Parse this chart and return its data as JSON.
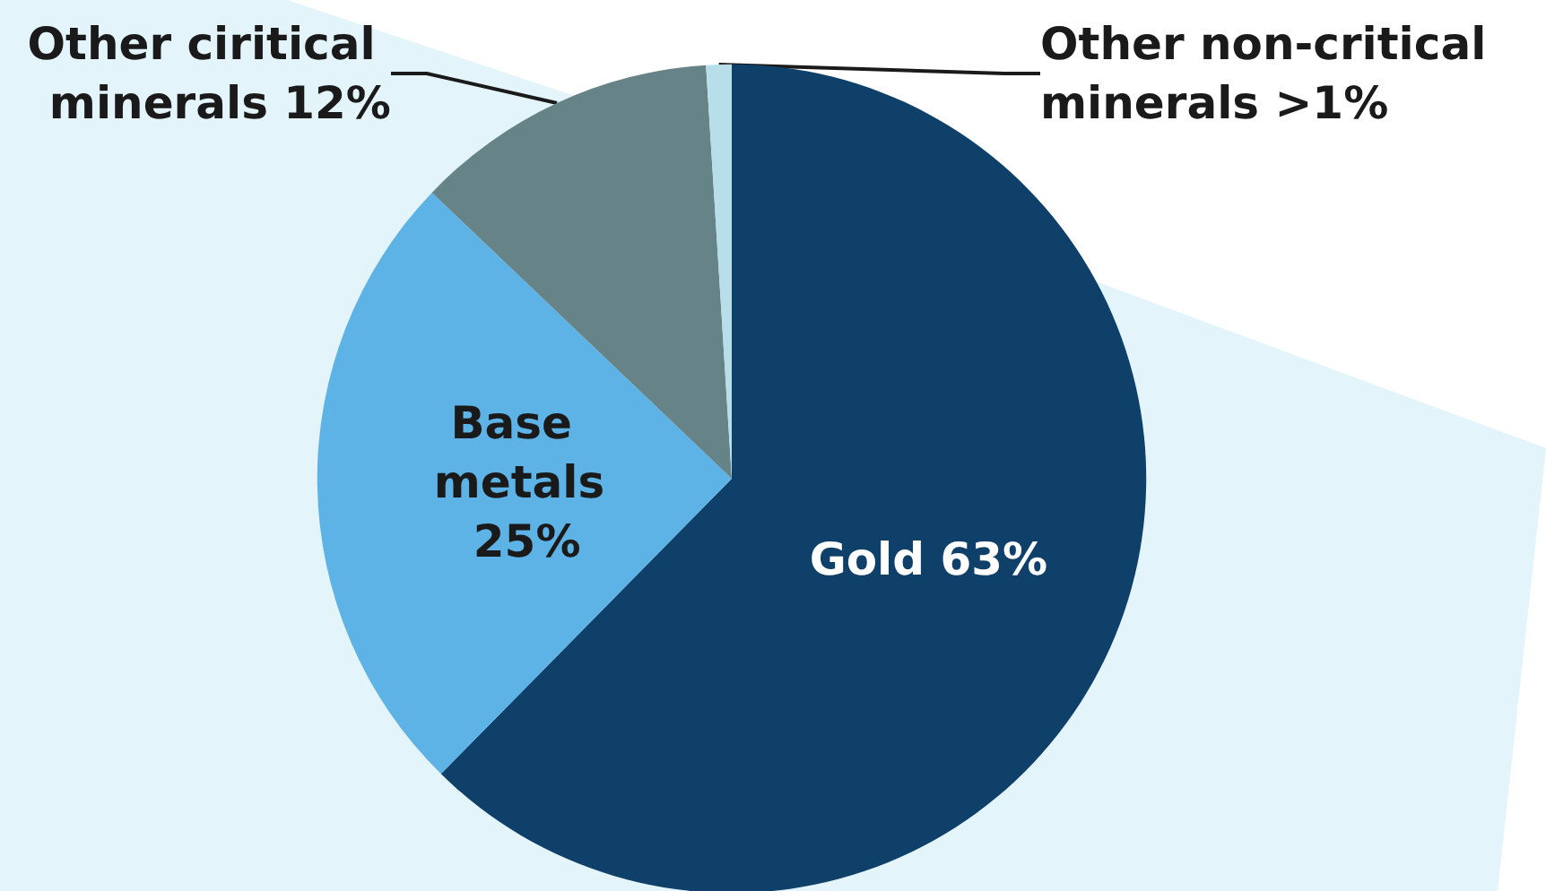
{
  "chart_data": {
    "type": "pie",
    "categories": [
      "Gold",
      "Base metals",
      "Other ciritical minerals",
      "Other non-critical minerals"
    ],
    "values": [
      63,
      25,
      12,
      1
    ],
    "value_labels": [
      "63%",
      "25%",
      "12%",
      ">1%"
    ],
    "colors": [
      "#0f4069",
      "#5db3e6",
      "#668387",
      "#b8dfe9"
    ]
  }
}
